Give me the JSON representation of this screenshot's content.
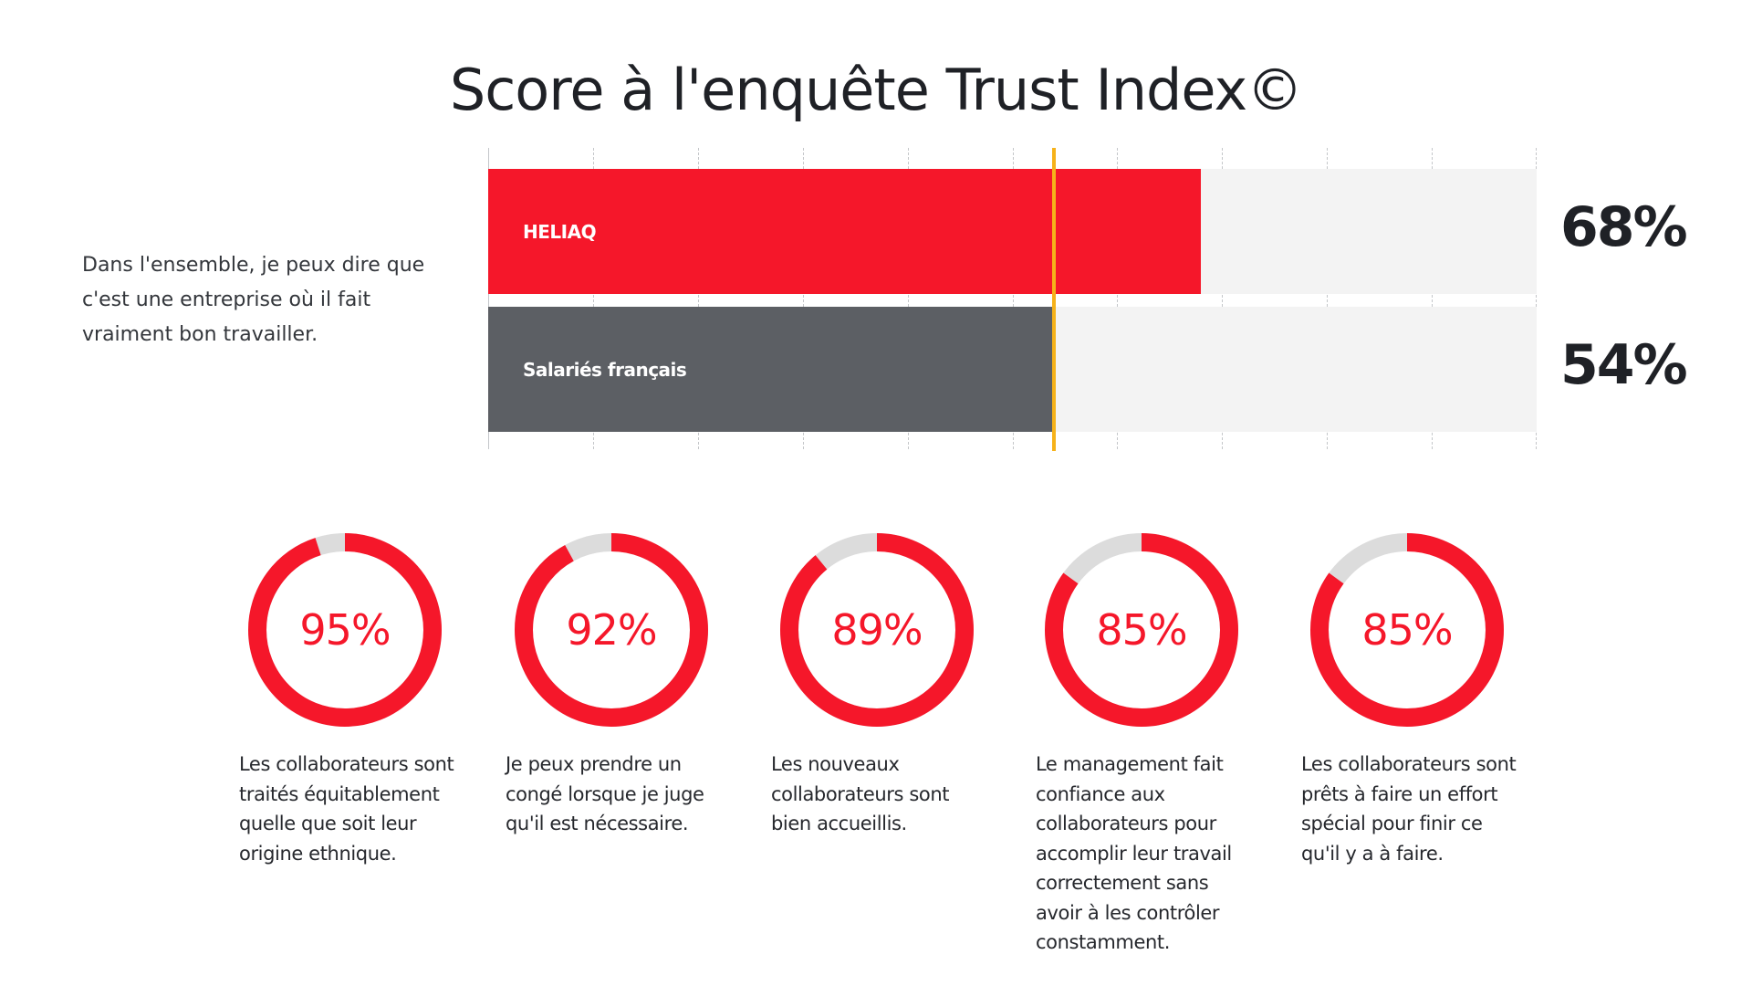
{
  "title": "Score à l'enquête Trust Index©",
  "question": "Dans l'ensemble, je peux dire que c'est une entreprise où il fait vraiment bon travailler.",
  "colors": {
    "accent": "#f5172a",
    "benchmark": "#5c5f64",
    "track": "#f3f3f3",
    "reference": "#f6b21a",
    "ring_bg": "#dcdcdc"
  },
  "bars": [
    {
      "label": "HELIAQ",
      "value": 68,
      "display": "68%"
    },
    {
      "label": "Salariés français",
      "value": 54,
      "display": "54%"
    }
  ],
  "donuts": [
    {
      "value": 95,
      "display": "95%",
      "caption": "Les collaborateurs sont\ntraités équitablement\nquelle que soit leur\norigine ethnique."
    },
    {
      "value": 92,
      "display": "92%",
      "caption": "Je peux prendre un\ncongé lorsque je juge\nqu'il est nécessaire."
    },
    {
      "value": 89,
      "display": "89%",
      "caption": "Les nouveaux\ncollaborateurs sont\nbien accueillis."
    },
    {
      "value": 85,
      "display": "85%",
      "caption": "Le management fait\nconfiance aux\ncollaborateurs pour\naccomplir leur travail\ncorrectement sans\navoir à les contrôler\nconstamment."
    },
    {
      "value": 85,
      "display": "85%",
      "caption": "Les collaborateurs sont\nprêts à faire un effort\nspécial pour finir ce\nqu'il y a à faire."
    }
  ],
  "chart_data": [
    {
      "type": "bar",
      "orientation": "horizontal",
      "title": "Score à l'enquête Trust Index©",
      "subtitle": "Dans l'ensemble, je peux dire que c'est une entreprise où il fait vraiment bon travailler.",
      "categories": [
        "HELIAQ",
        "Salariés français"
      ],
      "values": [
        68,
        54
      ],
      "xlim": [
        0,
        100
      ],
      "grid": true,
      "grid_step": 10,
      "reference_line": {
        "value": 54,
        "color": "#f6b21a"
      },
      "unit": "%"
    },
    {
      "type": "pie",
      "variant": "donut",
      "categories": [
        "Les collaborateurs sont traités équitablement quelle que soit leur origine ethnique.",
        "Je peux prendre un congé lorsque je juge qu'il est nécessaire.",
        "Les nouveaux collaborateurs sont bien accueillis.",
        "Le management fait confiance aux collaborateurs pour accomplir leur travail correctement sans avoir à les contrôler constamment.",
        "Les collaborateurs sont prêts à faire un effort spécial pour finir ce qu'il y a à faire."
      ],
      "values": [
        95,
        92,
        89,
        85,
        85
      ],
      "unit": "%"
    }
  ]
}
